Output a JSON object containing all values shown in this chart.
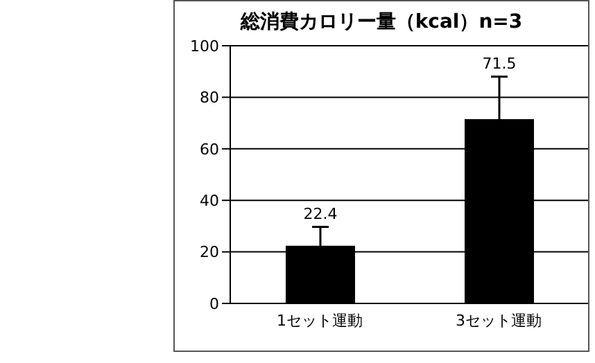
{
  "chart_data": {
    "type": "bar",
    "title": "総消費カロリー量（kcal）n=3",
    "categories": [
      "1セット運動",
      "3セット運動"
    ],
    "values": [
      22.4,
      71.5
    ],
    "color": "#000000",
    "errors": [
      7.3,
      16.5
    ],
    "data_labels": true,
    "ylim": [
      0,
      100
    ],
    "yticks": [
      0,
      20,
      40,
      60,
      80,
      100
    ],
    "grid": "y"
  }
}
